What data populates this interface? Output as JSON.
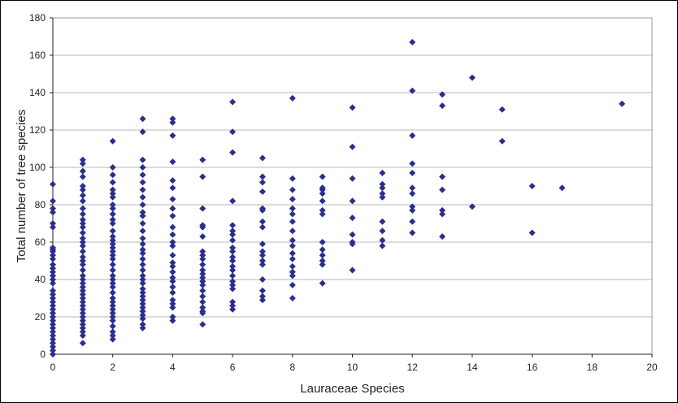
{
  "chart_data": {
    "type": "scatter",
    "title": "",
    "xlabel": "Lauraceae Species",
    "ylabel": "Total number of tree species",
    "xlim": [
      0,
      20
    ],
    "ylim": [
      0,
      180
    ],
    "xticks": [
      0,
      2,
      4,
      6,
      8,
      10,
      12,
      14,
      16,
      18,
      20
    ],
    "yticks": [
      0,
      20,
      40,
      60,
      80,
      100,
      120,
      140,
      160,
      180
    ],
    "grid": "horizontal",
    "legend": "none",
    "marker_color": "#2B2E8C",
    "grid_color": "#B8B8B8",
    "points": [
      [
        0,
        91
      ],
      [
        0,
        82
      ],
      [
        0,
        78
      ],
      [
        0,
        76
      ],
      [
        0,
        70
      ],
      [
        0,
        68
      ],
      [
        0,
        57
      ],
      [
        0,
        56
      ],
      [
        0,
        55
      ],
      [
        0,
        53
      ],
      [
        0,
        51
      ],
      [
        0,
        48
      ],
      [
        0,
        46
      ],
      [
        0,
        44
      ],
      [
        0,
        42
      ],
      [
        0,
        40
      ],
      [
        0,
        38
      ],
      [
        0,
        34
      ],
      [
        0,
        32
      ],
      [
        0,
        30
      ],
      [
        0,
        28
      ],
      [
        0,
        26
      ],
      [
        0,
        24
      ],
      [
        0,
        22
      ],
      [
        0,
        20
      ],
      [
        0,
        18
      ],
      [
        0,
        16
      ],
      [
        0,
        14
      ],
      [
        0,
        12
      ],
      [
        0,
        10
      ],
      [
        0,
        8
      ],
      [
        0,
        6
      ],
      [
        0,
        4
      ],
      [
        0,
        2
      ],
      [
        0,
        0
      ],
      [
        1,
        104
      ],
      [
        1,
        102
      ],
      [
        1,
        98
      ],
      [
        1,
        95
      ],
      [
        1,
        90
      ],
      [
        1,
        88
      ],
      [
        1,
        85
      ],
      [
        1,
        82
      ],
      [
        1,
        78
      ],
      [
        1,
        75
      ],
      [
        1,
        72
      ],
      [
        1,
        70
      ],
      [
        1,
        68
      ],
      [
        1,
        65
      ],
      [
        1,
        62
      ],
      [
        1,
        60
      ],
      [
        1,
        58
      ],
      [
        1,
        55
      ],
      [
        1,
        52
      ],
      [
        1,
        50
      ],
      [
        1,
        48
      ],
      [
        1,
        45
      ],
      [
        1,
        42
      ],
      [
        1,
        40
      ],
      [
        1,
        38
      ],
      [
        1,
        36
      ],
      [
        1,
        34
      ],
      [
        1,
        32
      ],
      [
        1,
        30
      ],
      [
        1,
        28
      ],
      [
        1,
        26
      ],
      [
        1,
        24
      ],
      [
        1,
        22
      ],
      [
        1,
        20
      ],
      [
        1,
        18
      ],
      [
        1,
        16
      ],
      [
        1,
        14
      ],
      [
        1,
        12
      ],
      [
        1,
        10
      ],
      [
        1,
        6
      ],
      [
        2,
        114
      ],
      [
        2,
        100
      ],
      [
        2,
        96
      ],
      [
        2,
        92
      ],
      [
        2,
        88
      ],
      [
        2,
        86
      ],
      [
        2,
        84
      ],
      [
        2,
        80
      ],
      [
        2,
        78
      ],
      [
        2,
        75
      ],
      [
        2,
        72
      ],
      [
        2,
        70
      ],
      [
        2,
        66
      ],
      [
        2,
        63
      ],
      [
        2,
        61
      ],
      [
        2,
        59
      ],
      [
        2,
        57
      ],
      [
        2,
        55
      ],
      [
        2,
        53
      ],
      [
        2,
        51
      ],
      [
        2,
        48
      ],
      [
        2,
        45
      ],
      [
        2,
        42
      ],
      [
        2,
        40
      ],
      [
        2,
        38
      ],
      [
        2,
        36
      ],
      [
        2,
        33
      ],
      [
        2,
        30
      ],
      [
        2,
        28
      ],
      [
        2,
        26
      ],
      [
        2,
        24
      ],
      [
        2,
        22
      ],
      [
        2,
        20
      ],
      [
        2,
        18
      ],
      [
        2,
        15
      ],
      [
        2,
        12
      ],
      [
        2,
        10
      ],
      [
        2,
        8
      ],
      [
        3,
        126
      ],
      [
        3,
        119
      ],
      [
        3,
        104
      ],
      [
        3,
        100
      ],
      [
        3,
        96
      ],
      [
        3,
        92
      ],
      [
        3,
        88
      ],
      [
        3,
        84
      ],
      [
        3,
        80
      ],
      [
        3,
        76
      ],
      [
        3,
        74
      ],
      [
        3,
        70
      ],
      [
        3,
        66
      ],
      [
        3,
        62
      ],
      [
        3,
        59
      ],
      [
        3,
        56
      ],
      [
        3,
        54
      ],
      [
        3,
        51
      ],
      [
        3,
        48
      ],
      [
        3,
        45
      ],
      [
        3,
        42
      ],
      [
        3,
        40
      ],
      [
        3,
        38
      ],
      [
        3,
        35
      ],
      [
        3,
        33
      ],
      [
        3,
        31
      ],
      [
        3,
        29
      ],
      [
        3,
        27
      ],
      [
        3,
        25
      ],
      [
        3,
        23
      ],
      [
        3,
        21
      ],
      [
        3,
        19
      ],
      [
        3,
        16
      ],
      [
        3,
        14
      ],
      [
        4,
        126
      ],
      [
        4,
        124
      ],
      [
        4,
        117
      ],
      [
        4,
        103
      ],
      [
        4,
        93
      ],
      [
        4,
        89
      ],
      [
        4,
        83
      ],
      [
        4,
        78
      ],
      [
        4,
        74
      ],
      [
        4,
        68
      ],
      [
        4,
        64
      ],
      [
        4,
        60
      ],
      [
        4,
        58
      ],
      [
        4,
        53
      ],
      [
        4,
        49
      ],
      [
        4,
        47
      ],
      [
        4,
        44
      ],
      [
        4,
        41
      ],
      [
        4,
        39
      ],
      [
        4,
        36
      ],
      [
        4,
        33
      ],
      [
        4,
        29
      ],
      [
        4,
        27
      ],
      [
        4,
        25
      ],
      [
        4,
        20
      ],
      [
        4,
        18
      ],
      [
        5,
        104
      ],
      [
        5,
        95
      ],
      [
        5,
        78
      ],
      [
        5,
        69
      ],
      [
        5,
        68
      ],
      [
        5,
        63
      ],
      [
        5,
        55
      ],
      [
        5,
        53
      ],
      [
        5,
        51
      ],
      [
        5,
        48
      ],
      [
        5,
        45
      ],
      [
        5,
        43
      ],
      [
        5,
        41
      ],
      [
        5,
        39
      ],
      [
        5,
        37
      ],
      [
        5,
        34
      ],
      [
        5,
        31
      ],
      [
        5,
        28
      ],
      [
        5,
        25
      ],
      [
        5,
        23
      ],
      [
        5,
        22
      ],
      [
        5,
        16
      ],
      [
        6,
        135
      ],
      [
        6,
        119
      ],
      [
        6,
        108
      ],
      [
        6,
        82
      ],
      [
        6,
        69
      ],
      [
        6,
        66
      ],
      [
        6,
        64
      ],
      [
        6,
        61
      ],
      [
        6,
        57
      ],
      [
        6,
        55
      ],
      [
        6,
        52
      ],
      [
        6,
        50
      ],
      [
        6,
        47
      ],
      [
        6,
        45
      ],
      [
        6,
        42
      ],
      [
        6,
        39
      ],
      [
        6,
        37
      ],
      [
        6,
        35
      ],
      [
        6,
        28
      ],
      [
        6,
        26
      ],
      [
        6,
        24
      ],
      [
        7,
        105
      ],
      [
        7,
        95
      ],
      [
        7,
        92
      ],
      [
        7,
        87
      ],
      [
        7,
        78
      ],
      [
        7,
        77
      ],
      [
        7,
        71
      ],
      [
        7,
        68
      ],
      [
        7,
        59
      ],
      [
        7,
        55
      ],
      [
        7,
        53
      ],
      [
        7,
        50
      ],
      [
        7,
        48
      ],
      [
        7,
        40
      ],
      [
        7,
        34
      ],
      [
        7,
        31
      ],
      [
        7,
        29
      ],
      [
        8,
        137
      ],
      [
        8,
        94
      ],
      [
        8,
        88
      ],
      [
        8,
        83
      ],
      [
        8,
        78
      ],
      [
        8,
        75
      ],
      [
        8,
        71
      ],
      [
        8,
        66
      ],
      [
        8,
        61
      ],
      [
        8,
        58
      ],
      [
        8,
        54
      ],
      [
        8,
        51
      ],
      [
        8,
        47
      ],
      [
        8,
        44
      ],
      [
        8,
        42
      ],
      [
        8,
        37
      ],
      [
        8,
        30
      ],
      [
        9,
        95
      ],
      [
        9,
        89
      ],
      [
        9,
        88
      ],
      [
        9,
        86
      ],
      [
        9,
        82
      ],
      [
        9,
        77
      ],
      [
        9,
        75
      ],
      [
        9,
        60
      ],
      [
        9,
        56
      ],
      [
        9,
        53
      ],
      [
        9,
        50
      ],
      [
        9,
        48
      ],
      [
        9,
        38
      ],
      [
        10,
        132
      ],
      [
        10,
        111
      ],
      [
        10,
        94
      ],
      [
        10,
        82
      ],
      [
        10,
        73
      ],
      [
        10,
        64
      ],
      [
        10,
        60
      ],
      [
        10,
        59
      ],
      [
        10,
        45
      ],
      [
        11,
        97
      ],
      [
        11,
        91
      ],
      [
        11,
        89
      ],
      [
        11,
        86
      ],
      [
        11,
        84
      ],
      [
        11,
        71
      ],
      [
        11,
        66
      ],
      [
        11,
        61
      ],
      [
        11,
        58
      ],
      [
        12,
        167
      ],
      [
        12,
        141
      ],
      [
        12,
        117
      ],
      [
        12,
        102
      ],
      [
        12,
        97
      ],
      [
        12,
        89
      ],
      [
        12,
        86
      ],
      [
        12,
        79
      ],
      [
        12,
        77
      ],
      [
        12,
        71
      ],
      [
        12,
        65
      ],
      [
        13,
        139
      ],
      [
        13,
        133
      ],
      [
        13,
        95
      ],
      [
        13,
        88
      ],
      [
        13,
        77
      ],
      [
        13,
        75
      ],
      [
        13,
        63
      ],
      [
        14,
        148
      ],
      [
        14,
        79
      ],
      [
        15,
        131
      ],
      [
        15,
        114
      ],
      [
        16,
        90
      ],
      [
        16,
        65
      ],
      [
        17,
        89
      ],
      [
        19,
        134
      ]
    ]
  }
}
